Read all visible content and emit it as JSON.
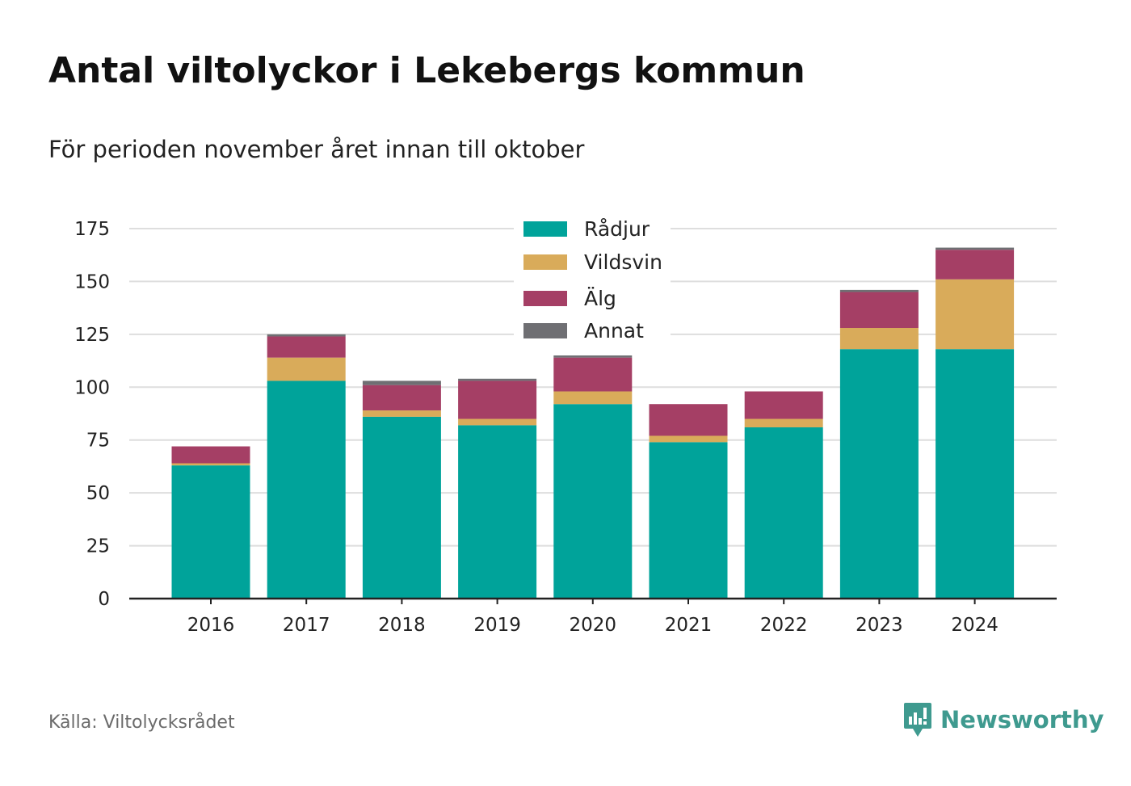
{
  "title": "Antal viltolyckor i Lekebergs kommun",
  "subtitle": "För perioden november året innan till oktober",
  "source": "Källa: Viltolycksrådet",
  "brand": {
    "name": "Newsworthy",
    "icon": "newsworthy-logo-icon",
    "color": "#3f9a8f"
  },
  "chart_data": {
    "type": "bar",
    "stacked": true,
    "categories": [
      "2016",
      "2017",
      "2018",
      "2019",
      "2020",
      "2021",
      "2022",
      "2023",
      "2024"
    ],
    "series": [
      {
        "name": "Rådjur",
        "color": "#00a39a",
        "values": [
          63,
          103,
          86,
          82,
          92,
          74,
          81,
          118,
          118
        ]
      },
      {
        "name": "Vildsvin",
        "color": "#d9ab5a",
        "values": [
          1,
          11,
          3,
          3,
          6,
          3,
          4,
          10,
          33
        ]
      },
      {
        "name": "Älg",
        "color": "#a53f65",
        "values": [
          8,
          10,
          12,
          18,
          16,
          15,
          13,
          17,
          14
        ]
      },
      {
        "name": "Annat",
        "color": "#6f6f73",
        "values": [
          0,
          1,
          2,
          1,
          1,
          0,
          0,
          1,
          1
        ]
      }
    ],
    "ylim": [
      0,
      175
    ],
    "yticks": [
      "0",
      "25",
      "50",
      "75",
      "100",
      "125",
      "150",
      "175"
    ],
    "grid": true,
    "legend": "top-center"
  }
}
